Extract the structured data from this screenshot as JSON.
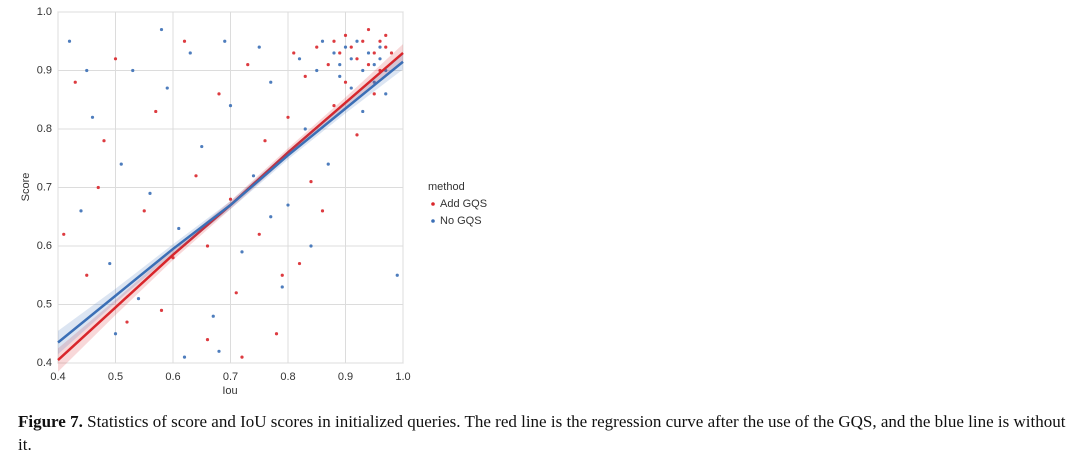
{
  "chart_data": {
    "type": "scatter",
    "xlabel": "Iou",
    "ylabel": "Score",
    "legend_title": "method",
    "legend": "right",
    "grid": true,
    "xlim": [
      0.4,
      1.0
    ],
    "ylim": [
      0.4,
      1.0
    ],
    "xticks": [
      0.4,
      0.5,
      0.6,
      0.7,
      0.8,
      0.9,
      {
        "value": 1,
        "label": "1.0"
      }
    ],
    "yticks": [
      0.4,
      0.5,
      0.6,
      0.7,
      0.8,
      0.9,
      {
        "value": 1,
        "label": "1.0"
      }
    ],
    "series": [
      {
        "name": "Add GQS",
        "color": "#d9262b",
        "x": [
          0.41,
          0.43,
          0.45,
          0.48,
          0.5,
          0.52,
          0.55,
          0.57,
          0.6,
          0.62,
          0.64,
          0.66,
          0.68,
          0.7,
          0.71,
          0.73,
          0.75,
          0.76,
          0.78,
          0.8,
          0.81,
          0.82,
          0.83,
          0.84,
          0.85,
          0.86,
          0.87,
          0.88,
          0.88,
          0.89,
          0.9,
          0.9,
          0.91,
          0.92,
          0.92,
          0.93,
          0.94,
          0.94,
          0.95,
          0.95,
          0.96,
          0.96,
          0.97,
          0.97,
          0.98,
          0.72,
          0.66,
          0.58,
          0.47,
          0.79
        ],
        "values": [
          0.62,
          0.88,
          0.55,
          0.78,
          0.92,
          0.47,
          0.66,
          0.83,
          0.58,
          0.95,
          0.72,
          0.44,
          0.86,
          0.68,
          0.52,
          0.91,
          0.62,
          0.78,
          0.45,
          0.82,
          0.93,
          0.57,
          0.89,
          0.71,
          0.94,
          0.66,
          0.91,
          0.95,
          0.84,
          0.93,
          0.96,
          0.88,
          0.94,
          0.92,
          0.79,
          0.95,
          0.91,
          0.97,
          0.93,
          0.86,
          0.95,
          0.9,
          0.94,
          0.96,
          0.93,
          0.41,
          0.6,
          0.49,
          0.7,
          0.55
        ],
        "fit": {
          "x": [
            0.4,
            0.5,
            0.6,
            0.7,
            0.8,
            0.9,
            1.0
          ],
          "values": [
            0.405,
            0.495,
            0.585,
            0.67,
            0.76,
            0.845,
            0.93
          ],
          "lower": [
            0.385,
            0.482,
            0.576,
            0.663,
            0.753,
            0.836,
            0.915
          ],
          "upper": [
            0.425,
            0.508,
            0.594,
            0.677,
            0.767,
            0.854,
            0.945
          ]
        }
      },
      {
        "name": "No GQS",
        "color": "#3b6fb6",
        "x": [
          0.42,
          0.44,
          0.46,
          0.49,
          0.51,
          0.53,
          0.54,
          0.56,
          0.59,
          0.61,
          0.63,
          0.65,
          0.67,
          0.69,
          0.7,
          0.72,
          0.74,
          0.75,
          0.77,
          0.79,
          0.8,
          0.82,
          0.83,
          0.85,
          0.86,
          0.87,
          0.88,
          0.89,
          0.89,
          0.9,
          0.91,
          0.91,
          0.92,
          0.93,
          0.93,
          0.94,
          0.95,
          0.95,
          0.96,
          0.96,
          0.97,
          0.97,
          0.68,
          0.62,
          0.5,
          0.77,
          0.84,
          0.58,
          0.45,
          0.99
        ],
        "values": [
          0.95,
          0.66,
          0.82,
          0.57,
          0.74,
          0.9,
          0.51,
          0.69,
          0.87,
          0.63,
          0.93,
          0.77,
          0.48,
          0.95,
          0.84,
          0.59,
          0.72,
          0.94,
          0.88,
          0.53,
          0.67,
          0.92,
          0.8,
          0.9,
          0.95,
          0.74,
          0.93,
          0.89,
          0.91,
          0.94,
          0.87,
          0.92,
          0.95,
          0.9,
          0.83,
          0.93,
          0.91,
          0.88,
          0.94,
          0.92,
          0.9,
          0.86,
          0.42,
          0.41,
          0.45,
          0.65,
          0.6,
          0.97,
          0.9,
          0.55
        ],
        "fit": {
          "x": [
            0.4,
            0.5,
            0.6,
            0.7,
            0.8,
            0.9,
            1.0
          ],
          "values": [
            0.435,
            0.515,
            0.595,
            0.67,
            0.755,
            0.835,
            0.915
          ],
          "lower": [
            0.415,
            0.503,
            0.587,
            0.663,
            0.748,
            0.827,
            0.902
          ],
          "upper": [
            0.455,
            0.527,
            0.603,
            0.677,
            0.762,
            0.843,
            0.928
          ]
        }
      }
    ]
  },
  "caption": {
    "label": "Figure 7.",
    "text": "Statistics of score and IoU scores in initialized queries. The red line is the regression curve after the use of the GQS, and the blue line is without it."
  }
}
